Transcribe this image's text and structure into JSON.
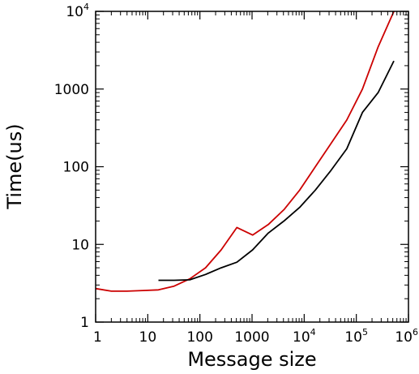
{
  "chart_data": {
    "type": "line",
    "title": "",
    "xlabel": "Message size",
    "ylabel": "Time(us)",
    "x_scale": "log",
    "y_scale": "log",
    "xlim": [
      1,
      1000000
    ],
    "ylim": [
      1,
      10000
    ],
    "grid": false,
    "legend": "none",
    "x_ticks": [
      {
        "value": 1,
        "base": "1",
        "exp": ""
      },
      {
        "value": 10,
        "base": "10",
        "exp": ""
      },
      {
        "value": 100,
        "base": "100",
        "exp": ""
      },
      {
        "value": 1000,
        "base": "1000",
        "exp": ""
      },
      {
        "value": 10000,
        "base": "10",
        "exp": "4"
      },
      {
        "value": 100000,
        "base": "10",
        "exp": "5"
      },
      {
        "value": 1000000,
        "base": "10",
        "exp": "6"
      }
    ],
    "y_ticks": [
      {
        "value": 1,
        "base": "1",
        "exp": ""
      },
      {
        "value": 10,
        "base": "10",
        "exp": ""
      },
      {
        "value": 100,
        "base": "100",
        "exp": ""
      },
      {
        "value": 1000,
        "base": "1000",
        "exp": ""
      },
      {
        "value": 10000,
        "base": "10",
        "exp": "4"
      }
    ],
    "series": [
      {
        "color": "#cc0000",
        "points": [
          [
            1,
            2.7
          ],
          [
            2,
            2.5
          ],
          [
            4,
            2.5
          ],
          [
            8,
            2.55
          ],
          [
            16,
            2.6
          ],
          [
            32,
            2.9
          ],
          [
            64,
            3.6
          ],
          [
            128,
            5
          ],
          [
            256,
            8.5
          ],
          [
            512,
            16.5
          ],
          [
            1024,
            13.2
          ],
          [
            2048,
            18
          ],
          [
            4096,
            28
          ],
          [
            8192,
            50
          ],
          [
            16384,
            100
          ],
          [
            32768,
            200
          ],
          [
            65536,
            400
          ],
          [
            131072,
            1000
          ],
          [
            262144,
            3500
          ],
          [
            524288,
            10000
          ]
        ]
      },
      {
        "color": "#000000",
        "points": [
          [
            16,
            3.45
          ],
          [
            32,
            3.45
          ],
          [
            64,
            3.5
          ],
          [
            128,
            4.1
          ],
          [
            256,
            5.0
          ],
          [
            512,
            5.9
          ],
          [
            1024,
            8.5
          ],
          [
            2048,
            14
          ],
          [
            4096,
            20
          ],
          [
            8192,
            30
          ],
          [
            16384,
            50
          ],
          [
            32768,
            90
          ],
          [
            65536,
            170
          ],
          [
            131072,
            500
          ],
          [
            262144,
            900
          ],
          [
            524288,
            2300
          ]
        ]
      }
    ]
  }
}
